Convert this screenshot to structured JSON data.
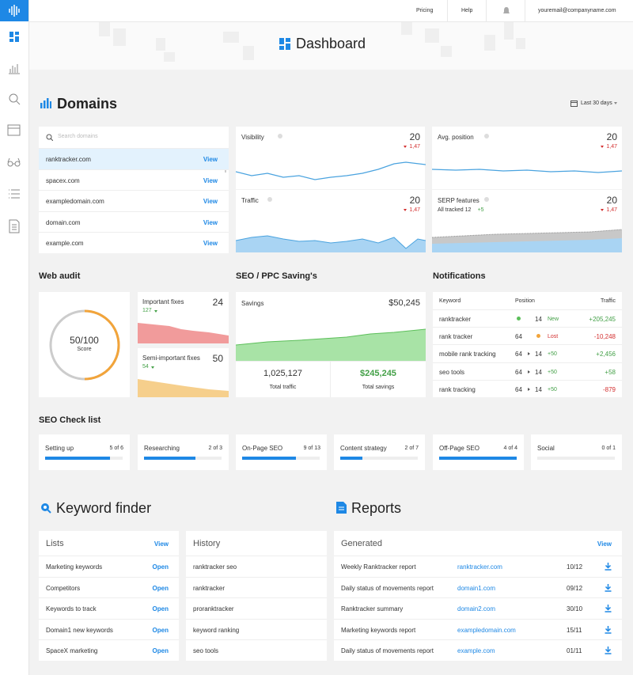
{
  "nav": {
    "links": [
      "Pricing",
      "Help"
    ],
    "email": "youremail@companyname.com"
  },
  "header": {
    "title": "Dashboard"
  },
  "domains": {
    "title": "Domains",
    "range": "Last 30 days",
    "search_placeholder": "Search domains",
    "rows": [
      {
        "name": "ranktracker.com",
        "action": "View"
      },
      {
        "name": "spacex.com",
        "action": "View"
      },
      {
        "name": "exampledomain.com",
        "action": "View"
      },
      {
        "name": "domain.com",
        "action": "View"
      },
      {
        "name": "example.com",
        "action": "View"
      }
    ],
    "cards": [
      {
        "title": "Visibility",
        "value": 20,
        "change": "1,47"
      },
      {
        "title": "Avg. position",
        "value": 20,
        "change": "1,47"
      },
      {
        "title": "Traffic",
        "value": 20,
        "change": "1,47"
      },
      {
        "title": "SERP features",
        "subtitle": "All tracked 12",
        "subtitle_change": "+5",
        "value": 20,
        "change": "1,47"
      }
    ]
  },
  "web_audit": {
    "title": "Web audit",
    "score": "50/100",
    "score_label": "Score",
    "fixes": [
      {
        "title": "Important fixes",
        "value": 24,
        "count": "127"
      },
      {
        "title": "Semi-important fixes",
        "value": 50,
        "count": "54"
      }
    ]
  },
  "seo_ppc": {
    "title": "SEO / PPC Saving's",
    "savings_label": "Savings",
    "savings_value": "$50,245",
    "stats": [
      {
        "value": "1,025,127",
        "label": "Total traffic"
      },
      {
        "value": "$245,245",
        "label": "Total savings"
      }
    ]
  },
  "notifications": {
    "title": "Notifications",
    "columns": [
      "Keyword",
      "Position",
      "Traffic"
    ],
    "rows": [
      {
        "keyword": "ranktracker",
        "to": "14",
        "status": "New",
        "traffic": "+205,245"
      },
      {
        "keyword": "rank tracker",
        "from": "64",
        "status": "Lost",
        "traffic": "-10,248"
      },
      {
        "keyword": "mobile rank tracking",
        "from": "64",
        "to": "14",
        "status": "+50",
        "traffic": "+2,456"
      },
      {
        "keyword": "seo tools",
        "from": "64",
        "to": "14",
        "status": "+50",
        "traffic": "+58"
      },
      {
        "keyword": "rank tracking",
        "from": "64",
        "to": "14",
        "status": "+50",
        "traffic": "-879"
      }
    ]
  },
  "checklist": {
    "title": "SEO Check list",
    "items": [
      {
        "name": "Setting up",
        "progress": "5 of 6",
        "done": 5,
        "total": 6
      },
      {
        "name": "Researching",
        "progress": "2 of 3",
        "done": 2,
        "total": 3
      },
      {
        "name": "On-Page SEO",
        "progress": "9 of 13",
        "done": 9,
        "total": 13
      },
      {
        "name": "Content strategy",
        "progress": "2 of 7",
        "done": 2,
        "total": 7
      },
      {
        "name": "Off-Page SEO",
        "progress": "4 of 4",
        "done": 4,
        "total": 4
      },
      {
        "name": "Social",
        "progress": "0 of 1",
        "done": 0,
        "total": 1
      }
    ]
  },
  "keyword_finder": {
    "title": "Keyword finder",
    "lists": {
      "title": "Lists",
      "action": "View",
      "rows": [
        {
          "name": "Marketing keywords",
          "action": "Open"
        },
        {
          "name": "Competitors",
          "action": "Open"
        },
        {
          "name": "Keywords to track",
          "action": "Open"
        },
        {
          "name": "Domain1 new keywords",
          "action": "Open"
        },
        {
          "name": "SpaceX marketing",
          "action": "Open"
        }
      ]
    },
    "history": {
      "title": "History",
      "rows": [
        "ranktracker seo",
        "ranktracker",
        "proranktracker",
        "keyword ranking",
        "seo tools"
      ]
    }
  },
  "reports": {
    "title": "Reports",
    "generated": {
      "title": "Generated",
      "action": "View",
      "rows": [
        {
          "name": "Weekly Ranktracker report",
          "domain": "ranktracker.com",
          "date": "10/12"
        },
        {
          "name": "Daily status of movements report",
          "domain": "domain1.com",
          "date": "09/12"
        },
        {
          "name": "Ranktracker summary",
          "domain": "domain2.com",
          "date": "30/10"
        },
        {
          "name": "Marketing keywords report",
          "domain": "exampledomain.com",
          "date": "15/11"
        },
        {
          "name": "Daily status of movements report",
          "domain": "example.com",
          "date": "01/11"
        }
      ]
    }
  }
}
